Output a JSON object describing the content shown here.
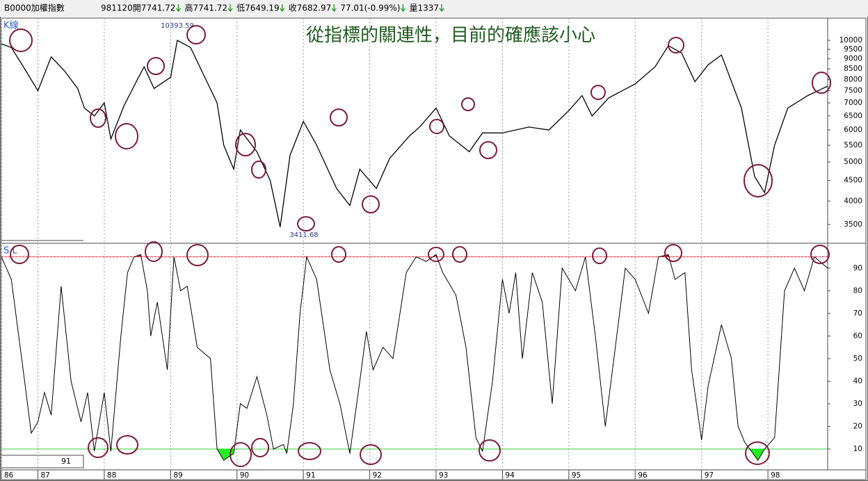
{
  "header": {
    "symbol": "B0000加權指數",
    "items": [
      "981120開7741.72",
      "高7741.72",
      "低7649.19",
      "收7682.97",
      "77.01(-0.99%)",
      "量1337"
    ]
  },
  "chart_data": [
    {
      "type": "line",
      "label": "K線",
      "title": "從指標的關連性，目前的確應該小心",
      "y_scale": "log",
      "color": "#000000",
      "xlim": [
        86.45,
        98.9
      ],
      "ylim": [
        3170,
        10740
      ],
      "yticks": [
        3500,
        4000,
        4500,
        5000,
        5500,
        6000,
        6500,
        7000,
        7500,
        8000,
        8500,
        9000,
        9500,
        10000
      ],
      "annotations": [
        "10393.59",
        "3411.68"
      ],
      "x": [
        86.45,
        86.6,
        86.8,
        87.0,
        87.2,
        87.4,
        87.6,
        87.7,
        87.85,
        88.0,
        88.1,
        88.3,
        88.5,
        88.6,
        88.75,
        89.0,
        89.1,
        89.3,
        89.5,
        89.7,
        89.8,
        89.95,
        90.05,
        90.3,
        90.5,
        90.65,
        90.8,
        91.0,
        91.2,
        91.5,
        91.7,
        91.85,
        92.1,
        92.3,
        92.6,
        92.75,
        93.0,
        93.2,
        93.5,
        93.7,
        94.0,
        94.4,
        94.7,
        95.0,
        95.2,
        95.35,
        95.6,
        96.0,
        96.3,
        96.5,
        96.7,
        96.9,
        97.1,
        97.3,
        97.6,
        97.8,
        97.95,
        98.1,
        98.3,
        98.6,
        98.9
      ],
      "series": [
        {
          "color": "#000000",
          "values": [
            9800,
            9600,
            8500,
            7500,
            9100,
            8400,
            7600,
            6800,
            6500,
            7000,
            5700,
            6900,
            8000,
            8600,
            7600,
            8100,
            10000,
            9600,
            8200,
            7000,
            5500,
            4800,
            6000,
            5300,
            4500,
            3450,
            5200,
            6300,
            5500,
            4300,
            3900,
            4800,
            4300,
            5100,
            5800,
            6100,
            6800,
            5800,
            5300,
            5900,
            5900,
            6100,
            6000,
            6700,
            7300,
            6500,
            7200,
            7800,
            8600,
            9700,
            9300,
            7900,
            8700,
            9200,
            6800,
            4600,
            4200,
            5500,
            6800,
            7300,
            7700
          ]
        }
      ]
    },
    {
      "type": "line",
      "label": "S.L",
      "current_value": 91,
      "color": "#000000",
      "xlim": [
        86.45,
        98.9
      ],
      "ylim": [
        2,
        101
      ],
      "yticks": [
        10,
        20,
        30,
        40,
        50,
        60,
        70,
        80,
        90
      ],
      "xticks": [
        {
          "value": 86.45,
          "label": "86"
        },
        87,
        88,
        89,
        90,
        91,
        92,
        93,
        94,
        95,
        96,
        97,
        98
      ],
      "reference_lines": [
        {
          "value": 95,
          "color": "#cc3366"
        },
        {
          "value": 10,
          "color": "#33cc33"
        }
      ],
      "x": [
        86.45,
        86.6,
        86.8,
        86.9,
        87.0,
        87.1,
        87.2,
        87.35,
        87.5,
        87.65,
        87.75,
        87.85,
        88.0,
        88.1,
        88.25,
        88.35,
        88.45,
        88.55,
        88.65,
        88.7,
        88.8,
        88.95,
        89.05,
        89.15,
        89.25,
        89.4,
        89.6,
        89.7,
        89.8,
        89.95,
        90.05,
        90.15,
        90.3,
        90.45,
        90.55,
        90.7,
        90.75,
        90.85,
        90.95,
        91.05,
        91.2,
        91.4,
        91.55,
        91.7,
        91.85,
        91.95,
        92.05,
        92.2,
        92.35,
        92.55,
        92.7,
        92.85,
        93.0,
        93.1,
        93.3,
        93.45,
        93.6,
        93.7,
        93.85,
        94.0,
        94.1,
        94.2,
        94.3,
        94.45,
        94.6,
        94.75,
        94.9,
        95.1,
        95.25,
        95.4,
        95.55,
        95.7,
        95.85,
        96.0,
        96.2,
        96.35,
        96.5,
        96.6,
        96.75,
        96.85,
        97.0,
        97.1,
        97.3,
        97.45,
        97.55,
        97.65,
        97.75,
        97.85,
        97.95,
        98.1,
        98.25,
        98.4,
        98.55,
        98.7,
        98.9
      ],
      "series": [
        {
          "color": "#000000",
          "values": [
            95,
            85,
            40,
            17,
            22,
            35,
            25,
            82,
            40,
            22,
            35,
            9,
            35,
            9,
            60,
            88,
            95,
            96,
            80,
            60,
            75,
            45,
            95,
            80,
            82,
            55,
            50,
            10,
            5,
            8,
            30,
            28,
            42,
            25,
            10,
            12,
            8,
            30,
            70,
            95,
            85,
            45,
            30,
            8,
            40,
            62,
            45,
            55,
            50,
            88,
            95,
            93,
            96,
            88,
            78,
            55,
            15,
            9,
            40,
            85,
            70,
            88,
            50,
            88,
            75,
            30,
            90,
            80,
            95,
            60,
            20,
            55,
            90,
            85,
            70,
            95,
            96,
            85,
            88,
            45,
            14,
            38,
            65,
            50,
            20,
            13,
            9,
            5,
            10,
            15,
            80,
            90,
            80,
            95,
            90
          ]
        }
      ]
    }
  ]
}
